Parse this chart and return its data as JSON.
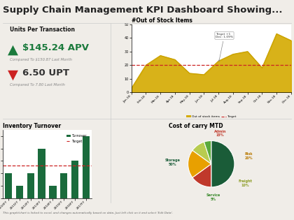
{
  "title": "Supply Chain Management KPI Dashboard Showing...",
  "title_fontsize": 9.5,
  "background_color": "#f0ede8",
  "panel_bg": "#ffffff",
  "units_per_transaction": {
    "header": "Units Per Transaction",
    "apv_symbol": "▲",
    "apv_value": "$145.24 APV",
    "apv_compare": "Compared To $150.87 Last Month",
    "upt_symbol": "▼",
    "upt_value": "6.50 UPT",
    "upt_compare": "Compared To 7.80 Last Month"
  },
  "out_of_stock": {
    "title": "#Out of Stock Items",
    "months": [
      "Jan-18",
      "Feb-18",
      "Mar-18",
      "Apr-18",
      "May-18",
      "Jun-18",
      "Jul-18",
      "Aug-18",
      "Sep-18",
      "Oct-18",
      "Nov-18",
      "Dec-18"
    ],
    "values": [
      3,
      20,
      27,
      24,
      14,
      13,
      23,
      28,
      30,
      18,
      43,
      38
    ],
    "target": 20,
    "fill_color": "#d4aa00",
    "line_color": "#c8a000",
    "target_color": "#cc2222",
    "annotation": "Target +1\nDec: 1.09%",
    "ylim": [
      0,
      50
    ]
  },
  "inventory_turnover": {
    "title": "Inventory Turnover",
    "categories": [
      "2010FY",
      "2011FY",
      "2012FY",
      "2013FY",
      "2014FY",
      "2015FY",
      "2016FY",
      "2017FY"
    ],
    "values": [
      20,
      10,
      20,
      40,
      10,
      20,
      30,
      50
    ],
    "target": 26,
    "bar_color": "#1a6b3c",
    "target_color": "#cc2222",
    "ylim": [
      0,
      55
    ]
  },
  "cost_of_carry": {
    "title": "Cost of carry MTD",
    "labels": [
      "Storage",
      "Admin",
      "Risk",
      "Freight",
      "Service"
    ],
    "sizes": [
      50,
      15,
      20,
      10,
      5
    ],
    "colors": [
      "#1a5c38",
      "#c0392b",
      "#e8a000",
      "#b8cc50",
      "#5aaa3c"
    ],
    "label_colors": [
      "#1a5c38",
      "#c0392b",
      "#b87800",
      "#8a9a20",
      "#3a8a2c"
    ]
  },
  "footer": "This graph/chart is linked to excel, and changes automatically based on data. Just left click on it and select 'Edit Data'."
}
